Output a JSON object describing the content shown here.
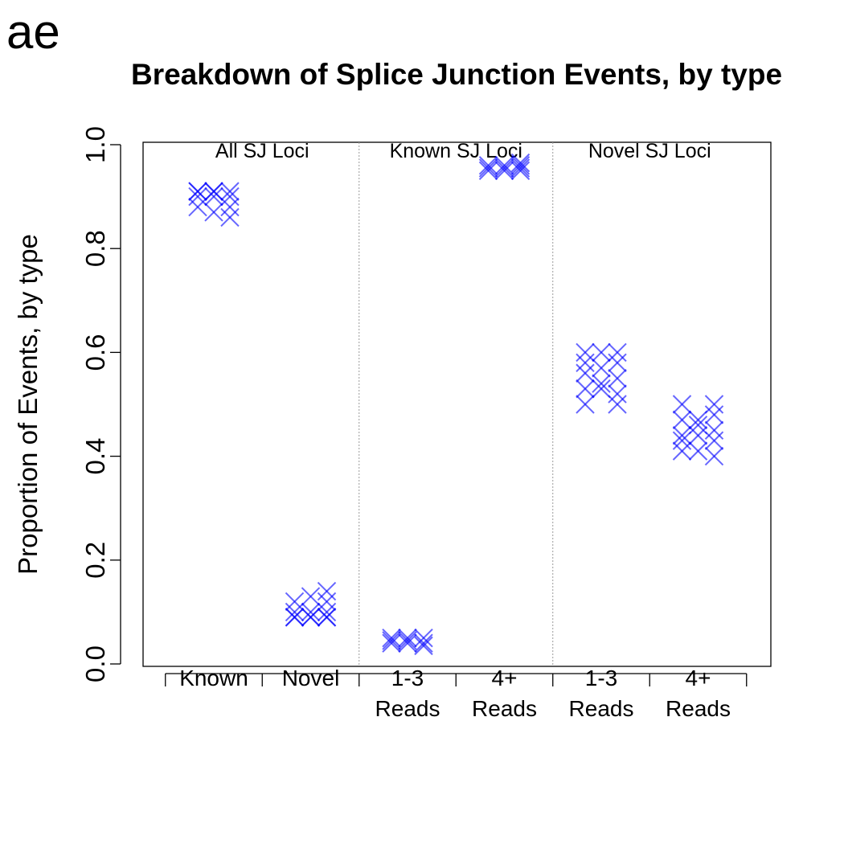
{
  "panel_letter": "ae",
  "chart_data": {
    "type": "scatter",
    "title": "Breakdown of Splice Junction Events, by type",
    "xlabel": "",
    "ylabel": "Proportion of Events, by type",
    "ylim": [
      0,
      1
    ],
    "yticks": [
      "0.0",
      "0.2",
      "0.4",
      "0.6",
      "0.8",
      "1.0"
    ],
    "grid": false,
    "marker": "x",
    "marker_color": "#0000ff",
    "groups": [
      {
        "label": "All SJ Loci",
        "categories": [
          0,
          1
        ]
      },
      {
        "label": "Known SJ Loci",
        "categories": [
          2,
          3
        ]
      },
      {
        "label": "Novel SJ Loci",
        "categories": [
          4,
          5
        ]
      }
    ],
    "categories": [
      {
        "label_lines": [
          "Known"
        ],
        "columns": [
          [
            0.88,
            0.9,
            0.91,
            0.91
          ],
          [
            0.87,
            0.9,
            0.91,
            0.91
          ],
          [
            0.86,
            0.88,
            0.9,
            0.91
          ]
        ]
      },
      {
        "label_lines": [
          "Novel"
        ],
        "columns": [
          [
            0.09,
            0.09,
            0.1,
            0.12
          ],
          [
            0.09,
            0.09,
            0.1,
            0.13
          ],
          [
            0.09,
            0.09,
            0.1,
            0.12,
            0.14
          ]
        ]
      },
      {
        "label_lines": [
          "1-3",
          "Reads"
        ],
        "columns": [
          [
            0.04,
            0.045,
            0.05
          ],
          [
            0.04,
            0.045,
            0.05
          ],
          [
            0.035,
            0.04,
            0.05
          ]
        ]
      },
      {
        "label_lines": [
          "4+",
          "Reads"
        ],
        "columns": [
          [
            0.95,
            0.955,
            0.96
          ],
          [
            0.95,
            0.955,
            0.96
          ],
          [
            0.95,
            0.955,
            0.96,
            0.965
          ]
        ]
      },
      {
        "label_lines": [
          "1-3",
          "Reads"
        ],
        "columns": [
          [
            0.5,
            0.53,
            0.56,
            0.58,
            0.6
          ],
          [
            0.53,
            0.54,
            0.57,
            0.6
          ],
          [
            0.5,
            0.52,
            0.55,
            0.58,
            0.6
          ]
        ]
      },
      {
        "label_lines": [
          "4+",
          "Reads"
        ],
        "columns": [
          [
            0.41,
            0.43,
            0.44,
            0.47,
            0.5
          ],
          [
            0.41,
            0.44,
            0.46,
            0.47
          ],
          [
            0.4,
            0.43,
            0.45,
            0.48,
            0.5
          ]
        ]
      }
    ]
  }
}
